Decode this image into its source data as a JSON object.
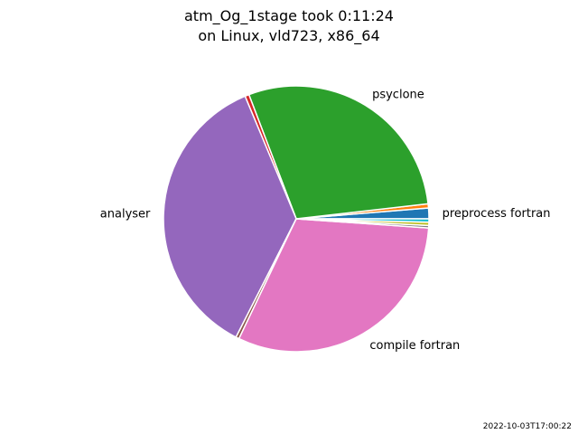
{
  "chart_data": {
    "type": "pie",
    "title": "atm_Og_1stage took 0:11:24",
    "subtitle": "on Linux, vld723, x86_64",
    "slices": [
      {
        "label": "preprocess fortran",
        "value": 1.3,
        "color": "#1f77b4"
      },
      {
        "label": "",
        "value": 0.5,
        "color": "#ff7f0e"
      },
      {
        "label": "psyclone",
        "value": 29.0,
        "color": "#2ca02c"
      },
      {
        "label": "",
        "value": 0.5,
        "color": "#d62728"
      },
      {
        "label": "analyser",
        "value": 36.2,
        "color": "#9467bd"
      },
      {
        "label": "",
        "value": 0.4,
        "color": "#8c564b"
      },
      {
        "label": "compile fortran",
        "value": 31.0,
        "color": "#e377c2"
      },
      {
        "label": "",
        "value": 0.3,
        "color": "#7f7f7f"
      },
      {
        "label": "",
        "value": 0.4,
        "color": "#bcbd22"
      },
      {
        "label": "",
        "value": 0.4,
        "color": "#17becf"
      }
    ],
    "start_angle_deg": 0,
    "direction": "counterclockwise",
    "legend": "none",
    "timestamp": "2022-10-03T17:00:22"
  }
}
